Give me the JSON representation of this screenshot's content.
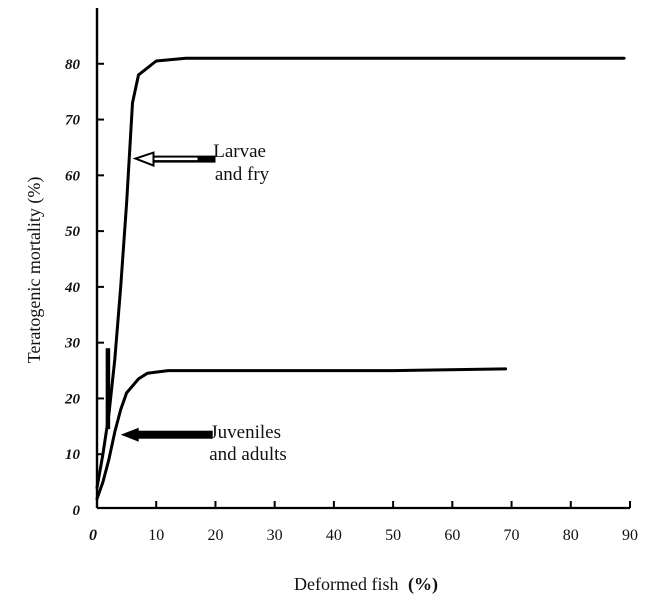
{
  "chart_data": {
    "type": "line",
    "xlabel": "Deformed fish",
    "xlabel_unit": "(%)",
    "ylabel": "Teratogenic mortality (%)",
    "xlim": [
      0,
      90
    ],
    "ylim": [
      0,
      90
    ],
    "grid": false,
    "x_ticks": [
      "0",
      "10",
      "20",
      "30",
      "40",
      "50",
      "60",
      "70",
      "80",
      "90"
    ],
    "y_ticks": [
      "0",
      "10",
      "20",
      "30",
      "40",
      "50",
      "60",
      "70",
      "80"
    ],
    "series": [
      {
        "points": [
          [
            0,
            4
          ],
          [
            1,
            10
          ],
          [
            2,
            17
          ],
          [
            3,
            27
          ],
          [
            4,
            40
          ],
          [
            5,
            55
          ],
          [
            6,
            73
          ],
          [
            7,
            78
          ],
          [
            10,
            80.5
          ],
          [
            15,
            81
          ],
          [
            30,
            81
          ],
          [
            60,
            81
          ],
          [
            89,
            81
          ]
        ]
      },
      {
        "points": [
          [
            0,
            2
          ],
          [
            1,
            5
          ],
          [
            2,
            9
          ],
          [
            3,
            14
          ],
          [
            4,
            18
          ],
          [
            5,
            21
          ],
          [
            7,
            23.5
          ],
          [
            8.5,
            24.5
          ],
          [
            12,
            25
          ],
          [
            30,
            25
          ],
          [
            50,
            25
          ],
          [
            69,
            25.3
          ]
        ]
      }
    ],
    "annotations": [
      {
        "lines": [
          "Larvae",
          "and fry"
        ],
        "arrow_to": [
          6.5,
          63
        ]
      },
      {
        "lines": [
          "Juveniles",
          "and adults"
        ],
        "arrow_to": [
          4,
          13.5
        ]
      }
    ],
    "marker": {
      "x": 1.8,
      "y_from": 14.5,
      "y_to": 29
    }
  }
}
